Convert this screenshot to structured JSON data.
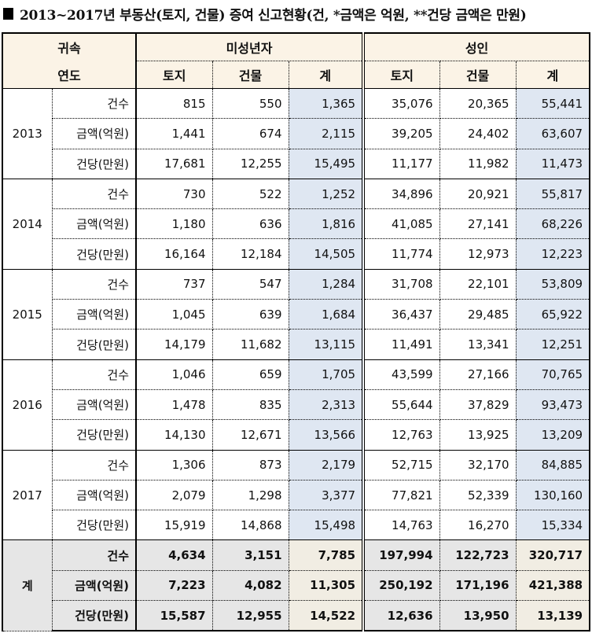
{
  "title": "2013~2017년 부동산(토지, 건물) 증여 신고현황(건, *금액은 억원, **건당 금액은 만원)",
  "header": {
    "corner_line1": "귀속",
    "corner_line2": "연도",
    "minor": "미성년자",
    "adult": "성인",
    "cols": [
      "토지",
      "건물",
      "계",
      "토지",
      "건물",
      "계"
    ]
  },
  "row_labels": [
    "건수",
    "금액(억원)",
    "건당(만원)"
  ],
  "years": [
    {
      "year": "2013",
      "rows": [
        [
          "815",
          "550",
          "1,365",
          "35,076",
          "20,365",
          "55,441"
        ],
        [
          "1,441",
          "674",
          "2,115",
          "39,205",
          "24,402",
          "63,607"
        ],
        [
          "17,681",
          "12,255",
          "15,495",
          "11,177",
          "11,982",
          "11,473"
        ]
      ]
    },
    {
      "year": "2014",
      "rows": [
        [
          "730",
          "522",
          "1,252",
          "34,896",
          "20,921",
          "55,817"
        ],
        [
          "1,180",
          "636",
          "1,816",
          "41,085",
          "27,141",
          "68,226"
        ],
        [
          "16,164",
          "12,184",
          "14,505",
          "11,774",
          "12,973",
          "12,223"
        ]
      ]
    },
    {
      "year": "2015",
      "rows": [
        [
          "737",
          "547",
          "1,284",
          "31,708",
          "22,101",
          "53,809"
        ],
        [
          "1,045",
          "639",
          "1,684",
          "36,437",
          "29,485",
          "65,922"
        ],
        [
          "14,179",
          "11,682",
          "13,115",
          "11,491",
          "13,341",
          "12,251"
        ]
      ]
    },
    {
      "year": "2016",
      "rows": [
        [
          "1,046",
          "659",
          "1,705",
          "43,599",
          "27,166",
          "70,765"
        ],
        [
          "1,478",
          "835",
          "2,313",
          "55,644",
          "37,829",
          "93,473"
        ],
        [
          "14,130",
          "12,671",
          "13,566",
          "12,763",
          "13,925",
          "13,209"
        ]
      ]
    },
    {
      "year": "2017",
      "rows": [
        [
          "1,306",
          "873",
          "2,179",
          "52,715",
          "32,170",
          "84,885"
        ],
        [
          "2,079",
          "1,298",
          "3,377",
          "77,821",
          "52,339",
          "130,160"
        ],
        [
          "15,919",
          "14,868",
          "15,498",
          "14,763",
          "16,270",
          "15,334"
        ]
      ]
    }
  ],
  "total": {
    "label": "계",
    "rows": [
      [
        "4,634",
        "3,151",
        "7,785",
        "197,994",
        "122,723",
        "320,717"
      ],
      [
        "7,223",
        "4,082",
        "11,305",
        "250,192",
        "171,196",
        "421,388"
      ],
      [
        "15,587",
        "12,955",
        "14,522",
        "12,636",
        "13,950",
        "13,139"
      ]
    ]
  },
  "colors": {
    "header_bg": "#fbf3e6",
    "subtotal_bg": "#dfe7f2",
    "total_bg": "#e6e6e6",
    "total_sum_bg": "#f1ede3"
  }
}
